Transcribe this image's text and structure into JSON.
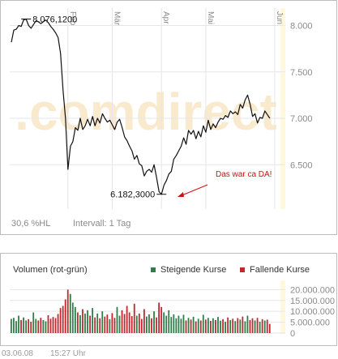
{
  "colors": {
    "price_line": "#111111",
    "up_bar": "#2e7d4a",
    "down_bar": "#c0282e",
    "grid": "#e6e6e6",
    "frame": "#bdbdbd",
    "axis_text": "#8a8a8a",
    "annotation": "#cc1010",
    "volume_scale_bg": "#fff8dc",
    "watermark": "#f7d9a6"
  },
  "watermark": ".comdirect",
  "price_chart": {
    "month_labels": [
      "Feb",
      "Mär",
      "Apr",
      "Mai",
      "Jun"
    ],
    "hl_percent": "30,6 %HL",
    "interval": "Intervall: 1 Tag"
  },
  "volume_chart": {
    "title": "Volumen (rot-grün)",
    "legend_up": "Steigende Kurse",
    "legend_down": "Fallende Kurse"
  },
  "footer": {
    "date": "03.06.08",
    "time": "15:27 Uhr"
  },
  "chart_data": [
    {
      "type": "line",
      "y_ticks": [
        6500,
        7000,
        7500,
        8000
      ],
      "y_tick_labels": [
        "6.500",
        "7.000",
        "7.500",
        "8.000"
      ],
      "ylim": [
        6040,
        8170
      ],
      "x_range_days": [
        0,
        109
      ],
      "month_ticks": [
        {
          "label": "Feb",
          "day": 23
        },
        {
          "label": "Mär",
          "day": 41
        },
        {
          "label": "Apr",
          "day": 61
        },
        {
          "label": "Mai",
          "day": 79
        },
        {
          "label": "Jun",
          "day": 107
        }
      ],
      "max_label": "8.076,1200",
      "max_day": 6,
      "min_label": "6.182,3000",
      "min_day": 61,
      "annotation": "Das war ca DA!",
      "series": [
        {
          "values": [
            7820,
            7950,
            7960,
            8000,
            7990,
            8060,
            8070,
            8000,
            7970,
            8010,
            8050,
            8040,
            8020,
            8040,
            8060,
            8030,
            7990,
            7960,
            7920,
            7870,
            7700,
            7300,
            7000,
            6450,
            6700,
            6750,
            6900,
            6870,
            7000,
            6880,
            6920,
            6990,
            6920,
            7020,
            6920,
            7000,
            6950,
            7050,
            7000,
            6960,
            6980,
            6930,
            6880,
            6960,
            6990,
            6900,
            6800,
            6760,
            6700,
            6650,
            6560,
            6600,
            6510,
            6490,
            6380,
            6430,
            6450,
            6420,
            6500,
            6360,
            6210,
            6182,
            6280,
            6330,
            6400,
            6430,
            6560,
            6600,
            6650,
            6700,
            6790,
            6720,
            6870,
            6830,
            6870,
            6780,
            6860,
            6800,
            6920,
            6850,
            6980,
            6880,
            6940,
            6900,
            6960,
            7000,
            6990,
            7030,
            7010,
            7080,
            7050,
            7070,
            7040,
            7150,
            7110,
            7200,
            7250,
            7150,
            7020,
            7050,
            6950,
            7010,
            7000,
            7080,
            7040,
            7000
          ]
        }
      ]
    },
    {
      "type": "bar",
      "title": "Volumen (rot-grün)",
      "y_ticks": [
        0,
        5000000,
        10000000,
        15000000,
        20000000
      ],
      "y_tick_labels": [
        "0",
        "5.000.000",
        "10.000.000",
        "15.000.000",
        "20.000.000"
      ],
      "ylim": [
        0,
        22000000
      ],
      "series": [
        {
          "name": "Steigende Kurse",
          "color": "#2e7d4a"
        },
        {
          "name": "Fallende Kurse",
          "color": "#c0282e"
        }
      ],
      "direction": "colored by day-over-day change of the price series",
      "values": [
        6500000,
        7000000,
        5500000,
        8000000,
        6000000,
        7200000,
        5800000,
        6400000,
        5200000,
        9500000,
        6500000,
        5800000,
        7000000,
        6000000,
        5400000,
        8200000,
        6600000,
        7400000,
        6900000,
        8800000,
        11500000,
        12500000,
        15500000,
        20000000,
        18000000,
        14000000,
        12000000,
        9500000,
        8200000,
        11000000,
        9000000,
        10500000,
        8000000,
        11500000,
        7200000,
        9000000,
        6800000,
        10000000,
        7600000,
        8500000,
        6400000,
        9200000,
        7000000,
        12000000,
        8000000,
        10500000,
        8800000,
        12500000,
        9500000,
        7800000,
        13500000,
        8000000,
        9000000,
        6500000,
        11000000,
        7600000,
        8600000,
        6800000,
        10000000,
        7200000,
        14000000,
        12000000,
        9500000,
        8000000,
        10500000,
        7400000,
        8600000,
        6800000,
        8000000,
        6600000,
        8400000,
        5800000,
        7000000,
        6200000,
        7500000,
        5400000,
        6600000,
        5800000,
        8400000,
        6200000,
        7000000,
        5600000,
        6800000,
        6000000,
        7400000,
        5700000,
        6400000,
        5200000,
        7200000,
        6000000,
        6600000,
        5500000,
        6900000,
        6200000,
        7600000,
        5400000,
        8000000,
        6000000,
        6800000,
        5800000,
        7000000,
        5200000,
        6400000,
        5800000,
        6200000,
        4200000
      ]
    }
  ]
}
